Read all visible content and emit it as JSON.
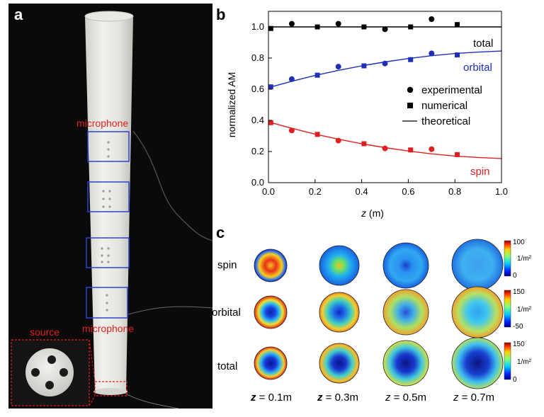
{
  "panels": {
    "a": "a",
    "b": "b",
    "c": "c"
  },
  "photo": {
    "microphone_top": "microphone",
    "microphone_bottom": "microphone",
    "source": "source"
  },
  "chart_data": {
    "type": "scatter",
    "xlabel_var": "z",
    "xlabel_unit": " (m)",
    "ylabel": "normalized AM",
    "xlim": [
      0,
      1.0
    ],
    "ylim": [
      0,
      1.1
    ],
    "x_ticks": [
      "0.0",
      "0.2",
      "0.4",
      "0.6",
      "0.8",
      "1.0"
    ],
    "y_ticks": [
      "0.0",
      "0.2",
      "0.4",
      "0.6",
      "0.8",
      "1.0"
    ],
    "legend": {
      "experimental": "experimental",
      "numerical": "numerical",
      "theoretical": "theoretical"
    },
    "series": [
      {
        "name": "total",
        "color": "#000000",
        "experimental": [
          [
            0.1,
            1.02
          ],
          [
            0.3,
            1.02
          ],
          [
            0.5,
            0.985
          ],
          [
            0.7,
            1.05
          ]
        ],
        "numerical": [
          [
            0.01,
            0.99
          ],
          [
            0.21,
            1.0
          ],
          [
            0.41,
            1.0
          ],
          [
            0.61,
            1.0
          ],
          [
            0.81,
            1.015
          ]
        ],
        "theoretical": [
          [
            0,
            1.0
          ],
          [
            1.0,
            1.0
          ]
        ]
      },
      {
        "name": "orbital",
        "color": "#1f2fb8",
        "experimental": [
          [
            0.1,
            0.665
          ],
          [
            0.3,
            0.745
          ],
          [
            0.5,
            0.765
          ],
          [
            0.7,
            0.83
          ]
        ],
        "numerical": [
          [
            0.01,
            0.615
          ],
          [
            0.21,
            0.69
          ],
          [
            0.41,
            0.75
          ],
          [
            0.61,
            0.79
          ],
          [
            0.81,
            0.82
          ]
        ],
        "theoretical": [
          [
            0,
            0.61
          ],
          [
            0.1,
            0.651
          ],
          [
            0.2,
            0.688
          ],
          [
            0.3,
            0.721
          ],
          [
            0.4,
            0.75
          ],
          [
            0.5,
            0.775
          ],
          [
            0.6,
            0.797
          ],
          [
            0.7,
            0.815
          ],
          [
            0.8,
            0.829
          ],
          [
            0.9,
            0.838
          ],
          [
            1.0,
            0.845
          ]
        ]
      },
      {
        "name": "spin",
        "color": "#e02020",
        "experimental": [
          [
            0.1,
            0.335
          ],
          [
            0.3,
            0.27
          ],
          [
            0.5,
            0.22
          ],
          [
            0.7,
            0.215
          ]
        ],
        "numerical": [
          [
            0.01,
            0.385
          ],
          [
            0.21,
            0.31
          ],
          [
            0.41,
            0.25
          ],
          [
            0.61,
            0.21
          ],
          [
            0.81,
            0.18
          ]
        ],
        "theoretical": [
          [
            0,
            0.39
          ],
          [
            0.1,
            0.349
          ],
          [
            0.2,
            0.312
          ],
          [
            0.3,
            0.279
          ],
          [
            0.4,
            0.25
          ],
          [
            0.5,
            0.225
          ],
          [
            0.6,
            0.203
          ],
          [
            0.7,
            0.185
          ],
          [
            0.8,
            0.171
          ],
          [
            0.9,
            0.162
          ],
          [
            1.0,
            0.155
          ]
        ]
      }
    ]
  },
  "panel_c": {
    "rows": [
      "spin",
      "orbital",
      "total"
    ],
    "z_labels": [
      {
        "var": "z",
        "val": " = 0.1m"
      },
      {
        "var": "z",
        "val": " = 0.3m"
      },
      {
        "var": "z",
        "val": " = 0.5m"
      },
      {
        "var": "z",
        "val": " = 0.7m"
      }
    ],
    "colorbars": [
      {
        "max": "100",
        "mid": "1/m²",
        "min": "0"
      },
      {
        "max": "150",
        "mid": "1/m²",
        "min": "-50"
      },
      {
        "max": "150",
        "mid": "1/m²",
        "min": "0"
      }
    ]
  }
}
